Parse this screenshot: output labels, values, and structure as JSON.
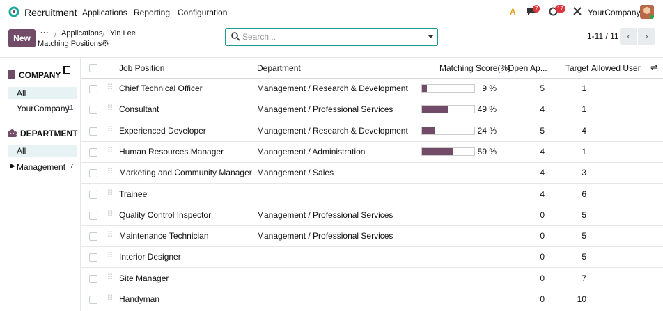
{
  "navbar": {
    "app": "Recruitment",
    "menus": [
      "Applications",
      "Reporting",
      "Configuration"
    ],
    "messages_badge": 7,
    "activities_badge": 17,
    "company": "YourCompany"
  },
  "control_panel": {
    "new_button": "New",
    "breadcrumb": [
      "Applications",
      "Yin Lee"
    ],
    "current": "Matching Positions",
    "search_placeholder": "Search...",
    "pager": "1-11 / 11"
  },
  "sidebar": {
    "company": {
      "title": "COMPANY",
      "items": [
        {
          "label": "All"
        },
        {
          "label": "YourCompany",
          "count": 11
        }
      ]
    },
    "department": {
      "title": "DEPARTMENT",
      "items": [
        {
          "label": "All"
        },
        {
          "label": "Management",
          "count": 7
        }
      ]
    }
  },
  "table": {
    "columns": {
      "job": "Job Position",
      "department": "Department",
      "score": "Matching Score(%)",
      "open": "Open Ap...",
      "target": "Target",
      "allowed": "Allowed User"
    },
    "rows": [
      {
        "job": "Chief Technical Officer",
        "department": "Management / Research & Development",
        "score": 9,
        "score_label": "9 %",
        "open": 5,
        "target": 1
      },
      {
        "job": "Consultant",
        "department": "Management / Professional Services",
        "score": 49,
        "score_label": "49 %",
        "open": 4,
        "target": 1
      },
      {
        "job": "Experienced Developer",
        "department": "Management / Research & Development",
        "score": 24,
        "score_label": "24 %",
        "open": 5,
        "target": 4
      },
      {
        "job": "Human Resources Manager",
        "department": "Management / Administration",
        "score": 59,
        "score_label": "59 %",
        "open": 4,
        "target": 1
      },
      {
        "job": "Marketing and Community Manager",
        "department": "Management / Sales",
        "open": 4,
        "target": 3
      },
      {
        "job": "Trainee",
        "open": 4,
        "target": 6
      },
      {
        "job": "Quality Control Inspector",
        "department": "Management / Professional Services",
        "open": 0,
        "target": 5
      },
      {
        "job": "Maintenance Technician",
        "department": "Management / Professional Services",
        "open": 0,
        "target": 5
      },
      {
        "job": "Interior Designer",
        "open": 0,
        "target": 5
      },
      {
        "job": "Site Manager",
        "open": 0,
        "target": 7
      },
      {
        "job": "Handyman",
        "open": 0,
        "target": 10
      }
    ]
  }
}
